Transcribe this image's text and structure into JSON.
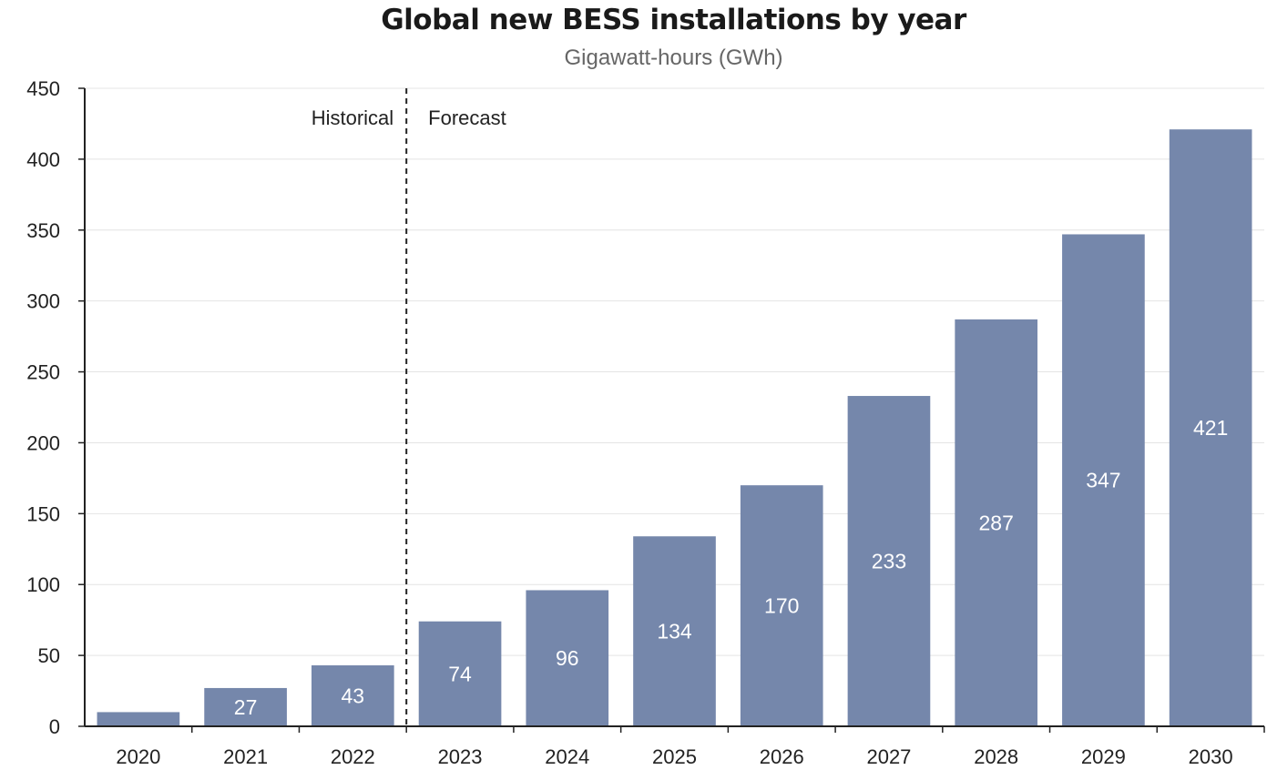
{
  "chart_data": {
    "type": "bar",
    "title": "Global new BESS installations by year",
    "subtitle": "Gigawatt-hours (GWh)",
    "categories": [
      "2020",
      "2021",
      "2022",
      "2023",
      "2024",
      "2025",
      "2026",
      "2027",
      "2028",
      "2029",
      "2030"
    ],
    "values": [
      10,
      27,
      43,
      74,
      96,
      134,
      170,
      233,
      287,
      347,
      421
    ],
    "data_labels": [
      "",
      "27",
      "43",
      "74",
      "96",
      "134",
      "170",
      "233",
      "287",
      "347",
      "421"
    ],
    "ylim": [
      0,
      450
    ],
    "yticks": [
      0,
      50,
      100,
      150,
      200,
      250,
      300,
      350,
      400,
      450
    ],
    "grid": true,
    "divider_label_left": "Historical",
    "divider_label_right": "Forecast",
    "bar_color": "#7587ab"
  }
}
